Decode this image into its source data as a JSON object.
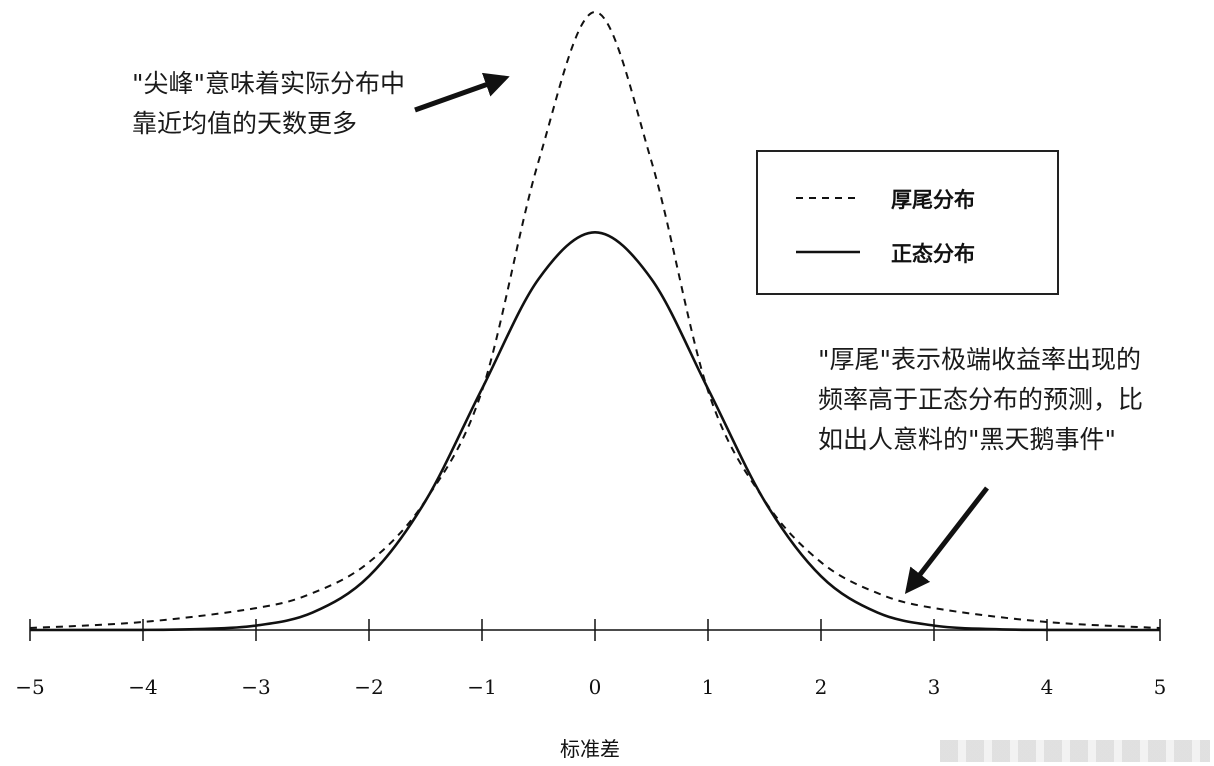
{
  "chart_data": {
    "type": "line",
    "xlabel": "标准差",
    "xlim": [
      -5,
      5
    ],
    "x_ticks": [
      "−5",
      "−4",
      "−3",
      "−2",
      "−1",
      "0",
      "1",
      "2",
      "3",
      "4",
      "5"
    ],
    "series": [
      {
        "name": "厚尾分布",
        "style": "dashed",
        "x": [
          -5,
          -4,
          -3,
          -2.5,
          -2,
          -1.5,
          -1,
          -0.5,
          0,
          0.5,
          1,
          1.5,
          2,
          2.5,
          3,
          4,
          5
        ],
        "y": [
          0.002,
          0.008,
          0.022,
          0.037,
          0.068,
          0.13,
          0.24,
          0.47,
          0.62,
          0.47,
          0.24,
          0.13,
          0.068,
          0.037,
          0.022,
          0.008,
          0.002
        ]
      },
      {
        "name": "正态分布",
        "style": "solid",
        "x": [
          -5,
          -4,
          -3.5,
          -3,
          -2.5,
          -2,
          -1.5,
          -1,
          -0.5,
          0,
          0.5,
          1,
          1.5,
          2,
          2.5,
          3,
          3.5,
          4,
          5
        ],
        "y": [
          0.0,
          0.0001,
          0.0009,
          0.0044,
          0.0175,
          0.054,
          0.1295,
          0.242,
          0.352,
          0.399,
          0.352,
          0.242,
          0.1295,
          0.054,
          0.0175,
          0.0044,
          0.0009,
          0.0001,
          0.0
        ]
      }
    ],
    "legend": {
      "position": "top-right",
      "items": [
        "厚尾分布",
        "正态分布"
      ]
    },
    "annotations": [
      {
        "lines": [
          "\"尖峰\"意味着实际分布中",
          "靠近均值的天数更多"
        ]
      },
      {
        "lines": [
          "\"厚尾\"表示极端收益率出现的",
          "频率高于正态分布的预测，比",
          "如出人意料的\"黑天鹅事件\""
        ]
      }
    ]
  }
}
